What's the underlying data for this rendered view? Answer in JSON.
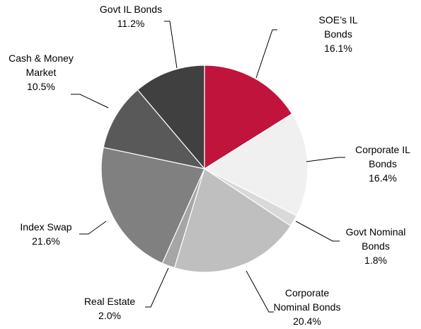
{
  "chart_data": {
    "type": "pie",
    "categories": [
      "SOE’s IL Bonds",
      "Corporate IL Bonds",
      "Govt Nominal Bonds",
      "Corporate Nominal Bonds",
      "Real Estate",
      "Index Swap",
      "Cash & Money Market",
      "Govt IL Bonds"
    ],
    "values": [
      16.1,
      16.4,
      1.8,
      20.4,
      2.0,
      21.6,
      10.5,
      11.2
    ],
    "value_labels": [
      "16.1%",
      "16.4%",
      "1.8%",
      "20.4%",
      "2.0%",
      "21.6%",
      "10.5%",
      "11.2%"
    ],
    "colors": [
      "#c0143c",
      "#f0f0f0",
      "#d9d9d9",
      "#bfbfbf",
      "#a6a6a6",
      "#808080",
      "#595959",
      "#404040"
    ]
  }
}
